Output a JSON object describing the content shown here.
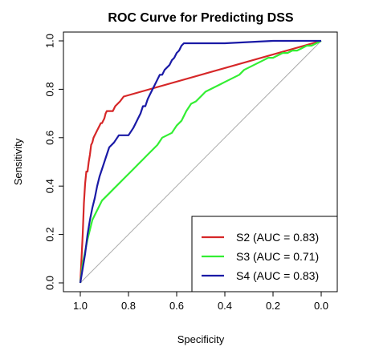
{
  "chart_data": {
    "type": "line",
    "title": "ROC Curve for Predicting DSS",
    "xlabel": "Specificity",
    "ylabel": "Sensitivity",
    "xlim": [
      1.0,
      0.0
    ],
    "ylim": [
      0.0,
      1.0
    ],
    "x_ticks": [
      "1.0",
      "0.8",
      "0.6",
      "0.4",
      "0.2",
      "0.0"
    ],
    "y_ticks": [
      "0.0",
      "0.2",
      "0.4",
      "0.6",
      "0.8",
      "1.0"
    ],
    "x_tick_values": [
      1.0,
      0.8,
      0.6,
      0.4,
      0.2,
      0.0
    ],
    "y_tick_values": [
      0.0,
      0.2,
      0.4,
      0.6,
      0.8,
      1.0
    ],
    "reference_line": {
      "color": "#aaaaaa",
      "x": [
        1.0,
        0.0
      ],
      "y": [
        0.0,
        1.0
      ]
    },
    "legend_position": "bottom-right",
    "series": [
      {
        "name": "S2 (AUC = 0.83)",
        "color": "#d62728",
        "x": [
          1.0,
          0.995,
          0.99,
          0.985,
          0.98,
          0.975,
          0.97,
          0.965,
          0.96,
          0.955,
          0.95,
          0.945,
          0.94,
          0.935,
          0.93,
          0.925,
          0.92,
          0.915,
          0.91,
          0.9,
          0.895,
          0.89,
          0.885,
          0.875,
          0.865,
          0.855,
          0.845,
          0.835,
          0.82,
          0.0
        ],
        "y": [
          0.0,
          0.1,
          0.2,
          0.33,
          0.41,
          0.46,
          0.46,
          0.5,
          0.53,
          0.57,
          0.58,
          0.6,
          0.61,
          0.62,
          0.63,
          0.64,
          0.65,
          0.66,
          0.66,
          0.68,
          0.7,
          0.71,
          0.71,
          0.71,
          0.71,
          0.73,
          0.74,
          0.75,
          0.77,
          1.0
        ]
      },
      {
        "name": "S3 (AUC = 0.71)",
        "color": "#33ee33",
        "x": [
          1.0,
          0.99,
          0.98,
          0.97,
          0.96,
          0.95,
          0.94,
          0.93,
          0.92,
          0.91,
          0.9,
          0.88,
          0.86,
          0.84,
          0.82,
          0.8,
          0.78,
          0.76,
          0.74,
          0.72,
          0.7,
          0.68,
          0.66,
          0.64,
          0.62,
          0.6,
          0.58,
          0.56,
          0.54,
          0.52,
          0.5,
          0.48,
          0.46,
          0.44,
          0.42,
          0.4,
          0.38,
          0.36,
          0.34,
          0.32,
          0.3,
          0.28,
          0.26,
          0.24,
          0.22,
          0.2,
          0.18,
          0.16,
          0.14,
          0.12,
          0.1,
          0.08,
          0.06,
          0.04,
          0.02,
          0.0
        ],
        "y": [
          0.0,
          0.08,
          0.13,
          0.18,
          0.22,
          0.26,
          0.28,
          0.3,
          0.32,
          0.34,
          0.35,
          0.37,
          0.39,
          0.41,
          0.43,
          0.45,
          0.47,
          0.49,
          0.51,
          0.53,
          0.55,
          0.57,
          0.6,
          0.61,
          0.62,
          0.65,
          0.67,
          0.71,
          0.74,
          0.75,
          0.77,
          0.79,
          0.8,
          0.81,
          0.82,
          0.83,
          0.84,
          0.85,
          0.86,
          0.88,
          0.89,
          0.9,
          0.91,
          0.92,
          0.93,
          0.93,
          0.94,
          0.95,
          0.95,
          0.96,
          0.96,
          0.97,
          0.98,
          0.98,
          0.99,
          1.0
        ]
      },
      {
        "name": "S4 (AUC = 0.83)",
        "color": "#1a1aa6",
        "x": [
          1.0,
          0.99,
          0.98,
          0.97,
          0.96,
          0.95,
          0.94,
          0.93,
          0.92,
          0.91,
          0.9,
          0.89,
          0.88,
          0.86,
          0.84,
          0.82,
          0.8,
          0.78,
          0.76,
          0.75,
          0.74,
          0.73,
          0.72,
          0.71,
          0.7,
          0.69,
          0.68,
          0.67,
          0.66,
          0.65,
          0.64,
          0.63,
          0.62,
          0.61,
          0.6,
          0.59,
          0.58,
          0.57,
          0.4,
          0.2,
          0.0
        ],
        "y": [
          0.0,
          0.06,
          0.12,
          0.2,
          0.26,
          0.31,
          0.35,
          0.4,
          0.44,
          0.47,
          0.5,
          0.53,
          0.56,
          0.58,
          0.61,
          0.61,
          0.61,
          0.64,
          0.68,
          0.7,
          0.73,
          0.73,
          0.76,
          0.78,
          0.8,
          0.82,
          0.84,
          0.86,
          0.86,
          0.88,
          0.89,
          0.9,
          0.92,
          0.93,
          0.95,
          0.96,
          0.98,
          0.99,
          0.99,
          1.0,
          1.0
        ]
      }
    ]
  }
}
